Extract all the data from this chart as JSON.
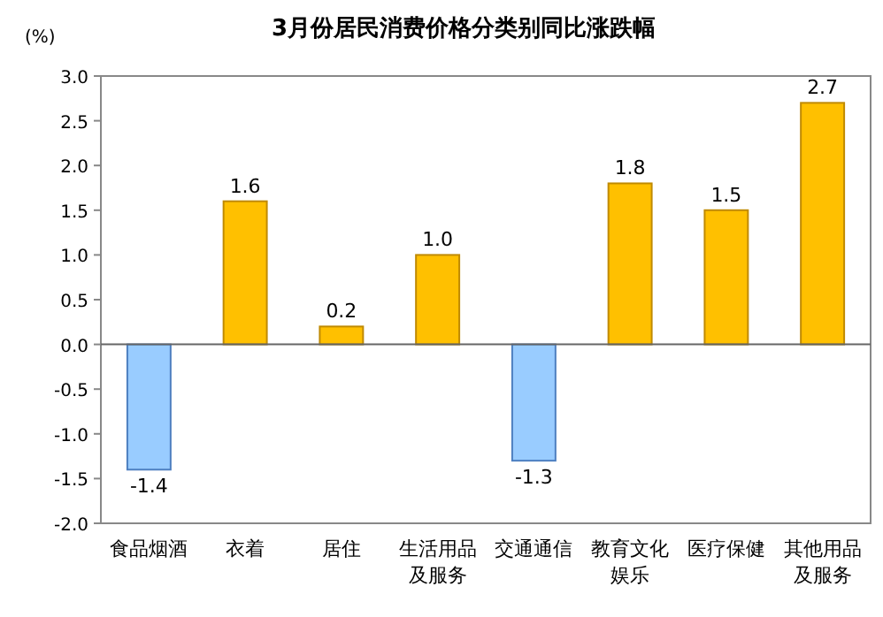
{
  "chart_data": {
    "type": "bar",
    "title": "3月份居民消费价格分类别同比涨跌幅",
    "ylabel": "(%)",
    "categories": [
      "食品烟酒",
      "衣着",
      "居住",
      "生活用品及服务",
      "交通通信",
      "教育文化娱乐",
      "医疗保健",
      "其他用品及服务"
    ],
    "values": [
      -1.4,
      1.6,
      0.2,
      1.0,
      -1.3,
      1.8,
      1.5,
      2.7
    ],
    "colors": [
      "#99ccff",
      "#ffc000",
      "#ffc000",
      "#ffc000",
      "#99ccff",
      "#ffc000",
      "#ffc000",
      "#ffc000"
    ],
    "value_labels": [
      "-1.4",
      "1.6",
      "0.2",
      "1.0",
      "-1.3",
      "1.8",
      "1.5",
      "2.7"
    ],
    "ylim": [
      -2.0,
      3.0
    ],
    "yticks": [
      {
        "value": -2.0,
        "label": "-2.0"
      },
      {
        "value": -1.5,
        "label": "-1.5"
      },
      {
        "value": -1.0,
        "label": "-1.0"
      },
      {
        "value": -0.5,
        "label": "-0.5"
      },
      {
        "value": 0,
        "label": "0.0"
      },
      {
        "value": 0.5,
        "label": "0.5"
      },
      {
        "value": 1.0,
        "label": "1.0"
      },
      {
        "value": 1.5,
        "label": "1.5"
      },
      {
        "value": 2.0,
        "label": "2.0"
      },
      {
        "value": 2.5,
        "label": "2.5"
      },
      {
        "value": 3.0,
        "label": "3.0"
      }
    ]
  }
}
